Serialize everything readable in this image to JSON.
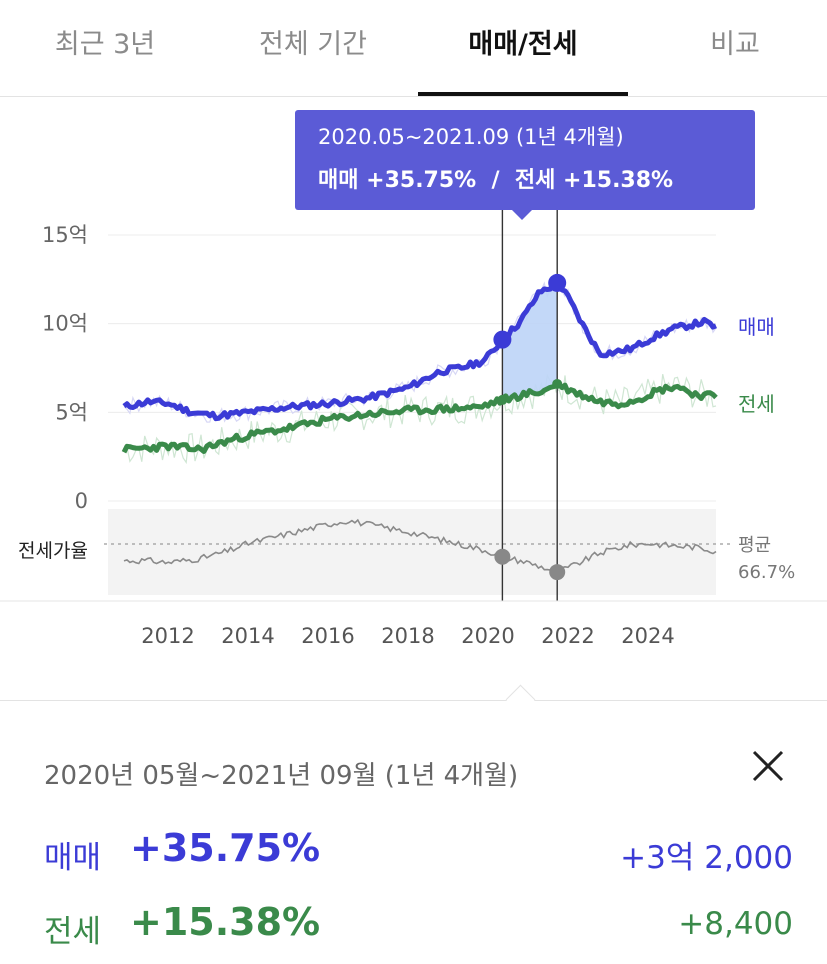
{
  "tabs": [
    {
      "label": "최근 3년",
      "active": false
    },
    {
      "label": "전체 기간",
      "active": false
    },
    {
      "label": "매매/전세",
      "active": true
    },
    {
      "label": "비교",
      "active": false
    }
  ],
  "colors": {
    "sale": "#3b3bd6",
    "jeonse": "#3a8a4a",
    "ratio": "#8a8a8a",
    "tooltip_bg": "#5b5bd6",
    "highlight_fill": "#bcd4f7"
  },
  "tooltip": {
    "line1": "2020.05~2021.09 (1년 4개월)",
    "line2": "매매 +35.75%  /  전세 +15.38%"
  },
  "chart_data": {
    "type": "line",
    "ylabels": [
      "15억",
      "10억",
      "5억",
      "0"
    ],
    "yticks": [
      15,
      10,
      5,
      0
    ],
    "ylim": [
      0,
      15
    ],
    "xlabels": [
      "2012",
      "2014",
      "2016",
      "2018",
      "2020",
      "2022",
      "2024"
    ],
    "xticks": [
      2012,
      2014,
      2016,
      2018,
      2020,
      2022,
      2024
    ],
    "xlim": [
      2010.5,
      2025.7
    ],
    "series": [
      {
        "name": "매매",
        "unit": "억",
        "points": [
          [
            2010.9,
            5.3
          ],
          [
            2011.5,
            5.6
          ],
          [
            2012.0,
            5.5
          ],
          [
            2012.6,
            5.0
          ],
          [
            2013.2,
            4.8
          ],
          [
            2014.0,
            5.0
          ],
          [
            2015.0,
            5.3
          ],
          [
            2016.0,
            5.5
          ],
          [
            2017.0,
            5.8
          ],
          [
            2018.0,
            6.4
          ],
          [
            2018.8,
            7.3
          ],
          [
            2019.3,
            7.5
          ],
          [
            2019.9,
            7.9
          ],
          [
            2020.36,
            9.1
          ],
          [
            2020.8,
            10.1
          ],
          [
            2021.3,
            11.8
          ],
          [
            2021.6,
            12.1
          ],
          [
            2021.73,
            12.3
          ],
          [
            2022.0,
            11.5
          ],
          [
            2022.4,
            9.8
          ],
          [
            2022.8,
            8.3
          ],
          [
            2023.2,
            8.4
          ],
          [
            2023.6,
            8.6
          ],
          [
            2024.1,
            9.2
          ],
          [
            2024.6,
            9.7
          ],
          [
            2025.0,
            9.9
          ],
          [
            2025.4,
            10.1
          ],
          [
            2025.7,
            9.8
          ]
        ]
      },
      {
        "name": "전세",
        "unit": "억",
        "points": [
          [
            2010.9,
            2.9
          ],
          [
            2011.5,
            3.0
          ],
          [
            2012.0,
            3.1
          ],
          [
            2012.8,
            2.9
          ],
          [
            2013.5,
            3.4
          ],
          [
            2014.0,
            3.7
          ],
          [
            2015.0,
            4.1
          ],
          [
            2016.0,
            4.6
          ],
          [
            2017.0,
            4.9
          ],
          [
            2018.0,
            5.1
          ],
          [
            2019.0,
            5.2
          ],
          [
            2019.8,
            5.3
          ],
          [
            2020.36,
            5.7
          ],
          [
            2020.9,
            6.0
          ],
          [
            2021.4,
            6.2
          ],
          [
            2021.73,
            6.6
          ],
          [
            2022.2,
            6.1
          ],
          [
            2022.8,
            5.6
          ],
          [
            2023.3,
            5.5
          ],
          [
            2023.8,
            5.8
          ],
          [
            2024.2,
            6.2
          ],
          [
            2024.7,
            6.5
          ],
          [
            2025.2,
            6.0
          ],
          [
            2025.7,
            5.9
          ]
        ]
      }
    ],
    "ratio_series": {
      "name": "전세가율",
      "average_label": "평균",
      "average_value": "66.7%",
      "points": [
        [
          2010.9,
          58
        ],
        [
          2011.5,
          58
        ],
        [
          2012.0,
          57
        ],
        [
          2012.8,
          59
        ],
        [
          2013.5,
          63
        ],
        [
          2014.0,
          67
        ],
        [
          2015.0,
          72
        ],
        [
          2016.0,
          77
        ],
        [
          2016.5,
          79
        ],
        [
          2017.0,
          77
        ],
        [
          2018.0,
          73
        ],
        [
          2019.0,
          68
        ],
        [
          2020.0,
          63
        ],
        [
          2020.36,
          60
        ],
        [
          2021.0,
          57
        ],
        [
          2021.73,
          52
        ],
        [
          2022.2,
          56
        ],
        [
          2022.8,
          62
        ],
        [
          2023.5,
          66
        ],
        [
          2024.0,
          67
        ],
        [
          2024.5,
          66
        ],
        [
          2025.2,
          65
        ],
        [
          2025.7,
          63
        ]
      ]
    },
    "highlight": {
      "start": 2020.36,
      "end": 2021.73
    }
  },
  "panel": {
    "period": "2020년 05월~2021년 09월 (1년 4개월)",
    "close_icon": "close-icon",
    "rows": [
      {
        "label": "매매",
        "pct": "+35.75%",
        "amount": "+3억 2,000",
        "color": "#3b3bd6"
      },
      {
        "label": "전세",
        "pct": "+15.38%",
        "amount": "+8,400",
        "color": "#3a8a4a"
      }
    ]
  }
}
